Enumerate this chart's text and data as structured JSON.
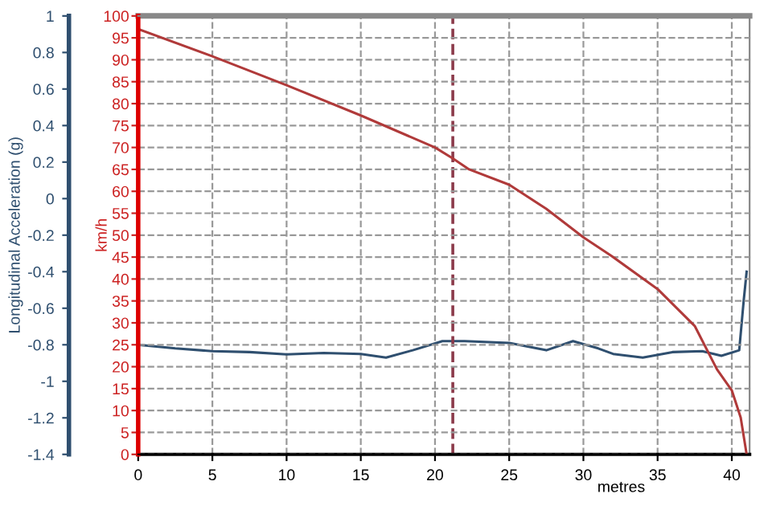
{
  "chart_data": {
    "type": "line",
    "xlabel": "metres",
    "ylabel": "Longitudinal Acceleration (g)",
    "y2label": "km/h",
    "xlim": [
      0,
      41.2
    ],
    "xticks": [
      0,
      5,
      10,
      15,
      20,
      25,
      30,
      35,
      40
    ],
    "ylim": [
      -1.4,
      1
    ],
    "yticks": [
      -1.4,
      -1.2,
      -1,
      -0.8,
      -0.6,
      -0.4,
      -0.2,
      0,
      0.2,
      0.4,
      0.6,
      0.8,
      1
    ],
    "y2lim": [
      0,
      100
    ],
    "y2ticks": [
      0,
      5,
      10,
      15,
      20,
      25,
      30,
      35,
      40,
      45,
      50,
      55,
      60,
      65,
      70,
      75,
      80,
      85,
      90,
      95,
      100
    ],
    "grid": true,
    "line_style": "solid",
    "marker": "none",
    "ref_lines": [
      {
        "axis": "x",
        "value": 21.2,
        "color": "#8b3a4a",
        "line_style": "dashed"
      }
    ],
    "series": [
      {
        "color": "#2f4f6f",
        "x": [
          0,
          2.5,
          5,
          7.5,
          10,
          12.5,
          15,
          16.7,
          18.5,
          20.5,
          22,
          25,
          27.5,
          29.3,
          31,
          32,
          34,
          36,
          38,
          39.3,
          40.5,
          40.8,
          41
        ],
        "values": [
          -0.8,
          -0.82,
          -0.835,
          -0.84,
          -0.853,
          -0.845,
          -0.85,
          -0.87,
          -0.83,
          -0.78,
          -0.78,
          -0.79,
          -0.83,
          -0.78,
          -0.82,
          -0.85,
          -0.87,
          -0.84,
          -0.835,
          -0.86,
          -0.83,
          -0.56,
          -0.4
        ]
      },
      {
        "color": "#b03a3a",
        "axis": "y2",
        "x": [
          0,
          5,
          10,
          15,
          20,
          21.2,
          22.3,
          25,
          27.5,
          30,
          32,
          35,
          37.5,
          39,
          40,
          40.6,
          41
        ],
        "values": [
          97,
          90.8,
          84.2,
          77.3,
          70,
          67.5,
          65,
          61.5,
          56,
          49.5,
          45,
          37.7,
          29.3,
          19.4,
          14.6,
          8.4,
          0
        ]
      }
    ]
  }
}
